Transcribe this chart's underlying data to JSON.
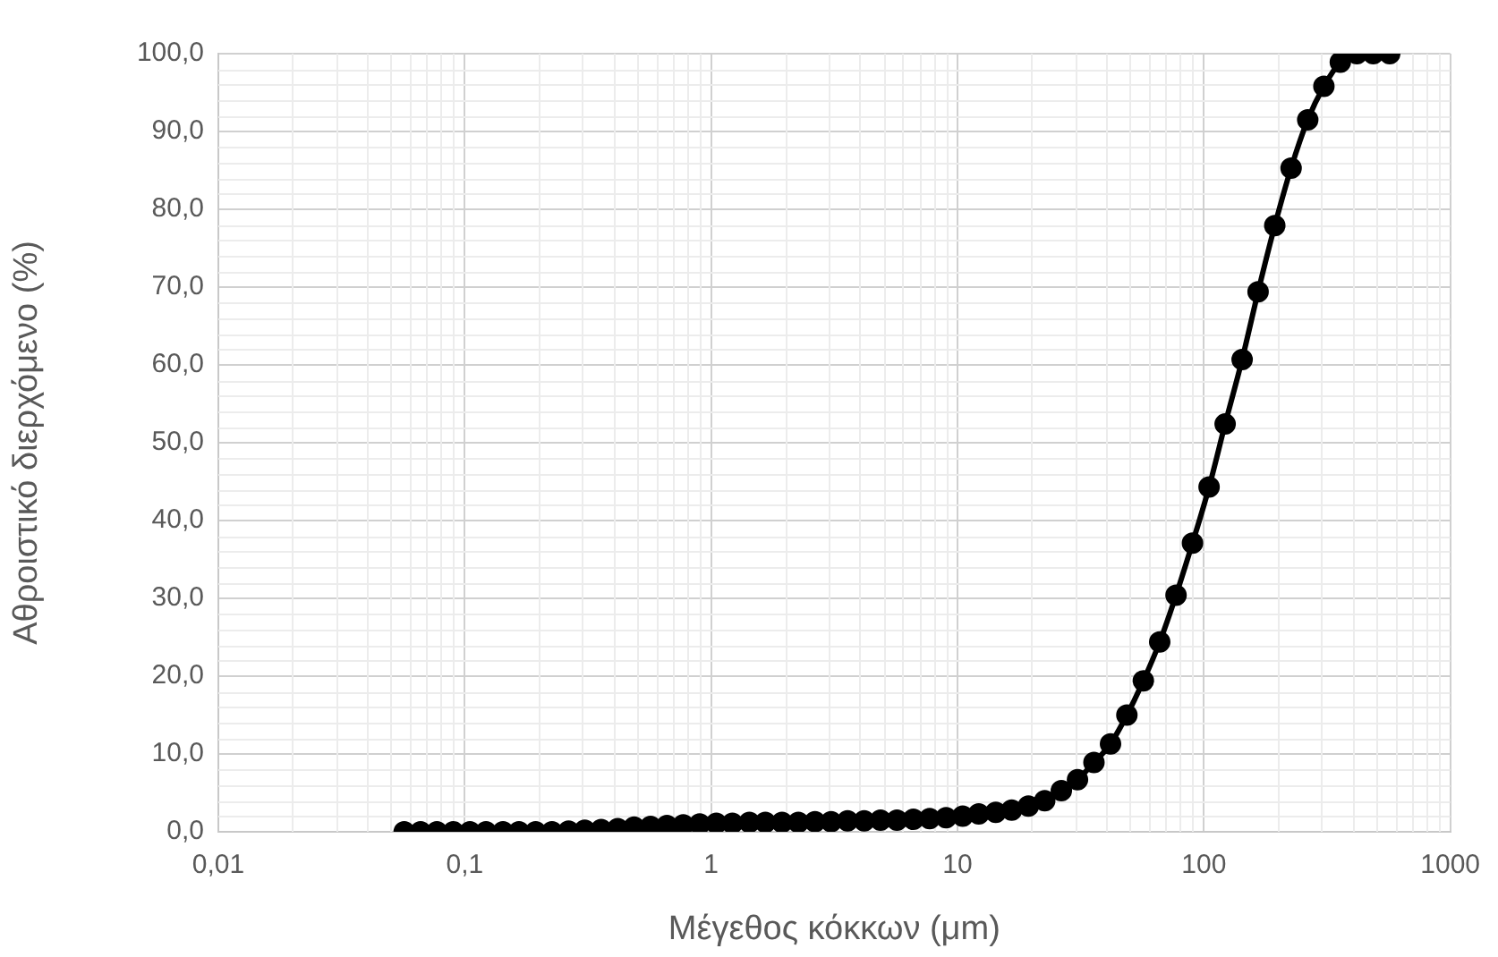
{
  "chart_data": {
    "type": "line",
    "xlabel": "Μέγεθος κόκκων (μm)",
    "ylabel": "Αθροιστικό διερχόμενο (%)",
    "log": "x",
    "grid": true,
    "legend": false,
    "marker": "circle",
    "line_style": "solid",
    "xlim": [
      0.01,
      1000
    ],
    "xticks": [
      {
        "value": 0.01,
        "label": "0,01"
      },
      {
        "value": 0.1,
        "label": "0,1"
      },
      1,
      10,
      100,
      1000
    ],
    "ylim": [
      0,
      100
    ],
    "yticks": [
      {
        "value": 0,
        "label": "0,0"
      },
      {
        "value": 10,
        "label": "10,0"
      },
      {
        "value": 20,
        "label": "20,0"
      },
      {
        "value": 30,
        "label": "30,0"
      },
      {
        "value": 40,
        "label": "40,0"
      },
      {
        "value": 50,
        "label": "50,0"
      },
      {
        "value": 60,
        "label": "60,0"
      },
      {
        "value": 70,
        "label": "70,0"
      },
      {
        "value": 80,
        "label": "80,0"
      },
      {
        "value": 90,
        "label": "90,0"
      },
      {
        "value": 100,
        "label": "100,0"
      }
    ],
    "x": [
      0.0568,
      0.0662,
      0.0771,
      0.0899,
      0.105,
      0.122,
      0.143,
      0.166,
      0.194,
      0.226,
      0.264,
      0.307,
      0.358,
      0.418,
      0.487,
      0.568,
      0.662,
      0.771,
      0.899,
      1.05,
      1.22,
      1.43,
      1.66,
      1.94,
      2.26,
      2.64,
      3.07,
      3.58,
      4.18,
      4.87,
      5.68,
      6.62,
      7.71,
      8.99,
      10.5,
      12.2,
      14.3,
      16.6,
      19.4,
      22.6,
      26.4,
      30.7,
      35.8,
      41.8,
      48.7,
      56.8,
      66.2,
      77.1,
      89.9,
      105,
      122,
      143,
      166,
      194,
      226,
      264,
      307,
      358,
      418,
      487,
      568
    ],
    "series": [
      {
        "color": "#000000",
        "values": [
          0,
          0,
          0,
          0,
          0,
          0,
          0,
          0,
          0,
          0,
          0.1,
          0.2,
          0.3,
          0.4,
          0.6,
          0.7,
          0.8,
          0.9,
          1.0,
          1.1,
          1.1,
          1.2,
          1.2,
          1.2,
          1.2,
          1.3,
          1.3,
          1.4,
          1.4,
          1.5,
          1.5,
          1.6,
          1.7,
          1.8,
          2.0,
          2.3,
          2.5,
          2.8,
          3.3,
          4.0,
          5.3,
          6.7,
          8.9,
          11.3,
          15.0,
          19.4,
          24.4,
          30.4,
          37.1,
          44.3,
          52.4,
          60.7,
          69.4,
          77.9,
          85.3,
          91.5,
          95.8,
          98.9,
          100,
          100,
          100
        ]
      }
    ]
  }
}
